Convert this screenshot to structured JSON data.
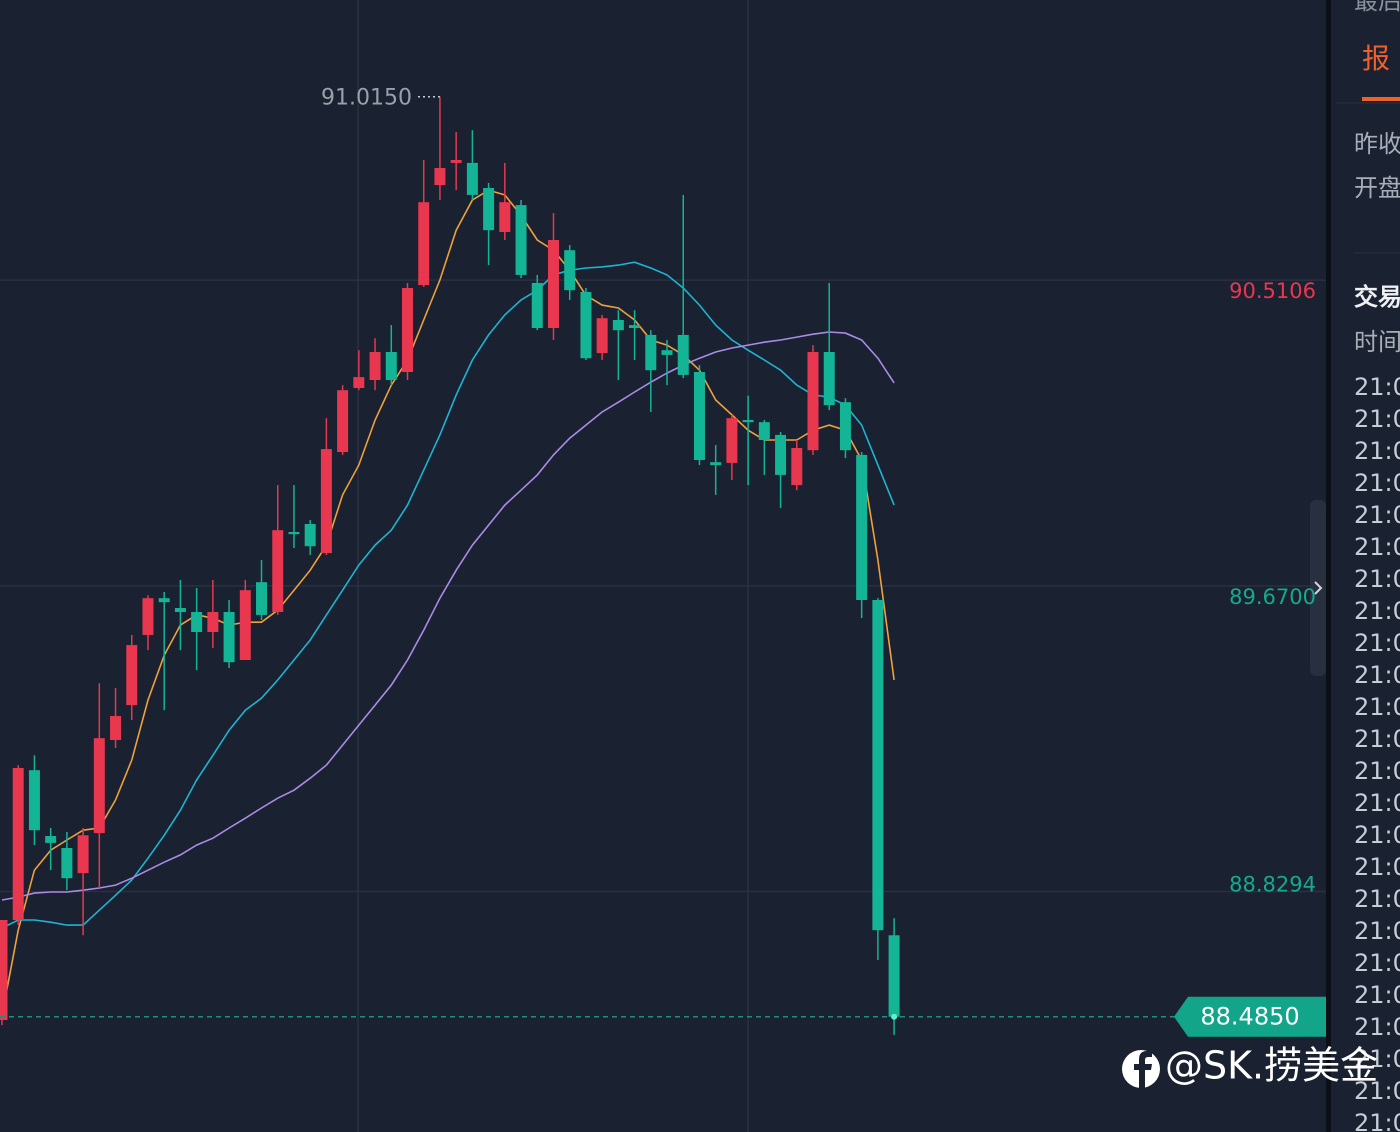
{
  "chart_data": {
    "type": "candlestick",
    "ylim": [
      88.168,
      91.281
    ],
    "yticks": [
      90.5106,
      {
        "value": 89.67,
        "label": "89.6700"
      },
      88.8294
    ],
    "ytick_colors": [
      "#e8374f",
      "#17a88e",
      "#17a88e"
    ],
    "grid": true,
    "up_color": "#e8374f",
    "down_color": "#14b496",
    "open": [
      88.476,
      88.751,
      89.163,
      88.982,
      88.949,
      88.88,
      88.99,
      89.246,
      89.342,
      89.535,
      89.636,
      89.609,
      89.598,
      89.543,
      89.598,
      89.466,
      89.68,
      89.598,
      89.818,
      89.84,
      89.76,
      90.038,
      90.214,
      90.236,
      90.313,
      90.258,
      90.497,
      90.772,
      90.833,
      90.833,
      90.764,
      90.643,
      90.717,
      90.503,
      90.379,
      90.593,
      90.478,
      90.31,
      90.401,
      90.387,
      90.36,
      90.318,
      90.36,
      90.258,
      90.01,
      90.008,
      90.126,
      90.12,
      90.085,
      89.947,
      90.043,
      90.313,
      90.175,
      90.03,
      89.631,
      88.709
    ],
    "high": [
      88.751,
      89.177,
      89.204,
      89.004,
      88.993,
      89.004,
      89.402,
      89.389,
      89.535,
      89.644,
      89.653,
      89.686,
      89.664,
      89.686,
      89.631,
      89.686,
      89.741,
      89.947,
      89.947,
      89.851,
      90.131,
      90.222,
      90.318,
      90.351,
      90.387,
      90.503,
      90.841,
      91.015,
      90.918,
      90.923,
      90.778,
      90.833,
      90.731,
      90.525,
      90.695,
      90.607,
      90.489,
      90.415,
      90.428,
      90.428,
      90.373,
      90.346,
      90.745,
      90.277,
      90.057,
      90.14,
      90.193,
      90.126,
      90.093,
      90.071,
      90.332,
      90.503,
      90.186,
      90.038,
      89.636,
      88.756
    ],
    "low": [
      88.462,
      88.737,
      88.957,
      88.888,
      88.833,
      88.709,
      88.839,
      89.224,
      89.301,
      89.493,
      89.328,
      89.493,
      89.438,
      89.499,
      89.444,
      89.466,
      89.576,
      89.59,
      89.774,
      89.755,
      89.755,
      90.03,
      90.208,
      90.208,
      90.222,
      90.236,
      90.492,
      90.731,
      90.758,
      90.731,
      90.552,
      90.621,
      90.516,
      90.373,
      90.346,
      90.456,
      90.291,
      90.291,
      90.236,
      90.291,
      90.148,
      90.222,
      90.241,
      90.002,
      89.92,
      89.961,
      89.947,
      89.975,
      89.884,
      89.933,
      90.03,
      90.153,
      90.021,
      89.581,
      88.641,
      88.435
    ],
    "close": [
      88.751,
      89.169,
      88.998,
      88.963,
      88.866,
      88.984,
      89.251,
      89.312,
      89.507,
      89.636,
      89.625,
      89.598,
      89.543,
      89.598,
      89.46,
      89.658,
      89.59,
      89.823,
      89.812,
      89.779,
      90.046,
      90.208,
      90.244,
      90.313,
      90.236,
      90.489,
      90.725,
      90.819,
      90.841,
      90.745,
      90.648,
      90.725,
      90.525,
      90.379,
      90.621,
      90.483,
      90.296,
      90.406,
      90.373,
      90.379,
      90.263,
      90.305,
      90.25,
      90.016,
      90.002,
      90.131,
      90.12,
      90.071,
      89.975,
      90.049,
      90.313,
      90.167,
      90.043,
      89.631,
      88.723,
      88.485
    ],
    "series": [
      {
        "color": "#f0a03c",
        "values": [
          88.489,
          88.723,
          88.888,
          88.943,
          88.971,
          88.998,
          89.004,
          89.081,
          89.191,
          89.356,
          89.479,
          89.562,
          89.59,
          89.581,
          89.562,
          89.57,
          89.57,
          89.603,
          89.658,
          89.713,
          89.782,
          89.92,
          90.002,
          90.126,
          90.222,
          90.291,
          90.401,
          90.511,
          90.648,
          90.731,
          90.758,
          90.745,
          90.689,
          90.621,
          90.593,
          90.538,
          90.469,
          90.442,
          90.434,
          90.401,
          90.346,
          90.332,
          90.305,
          90.263,
          90.181,
          90.14,
          90.098,
          90.071,
          90.071,
          90.071,
          90.098,
          90.112,
          90.098,
          90.016,
          89.741,
          89.411
        ]
      },
      {
        "color": "#1eb4d2",
        "values": [
          88.729,
          88.751,
          88.751,
          88.745,
          88.737,
          88.737,
          88.778,
          88.819,
          88.861,
          88.921,
          88.984,
          89.053,
          89.136,
          89.204,
          89.273,
          89.328,
          89.361,
          89.411,
          89.466,
          89.521,
          89.59,
          89.658,
          89.727,
          89.782,
          89.823,
          89.892,
          89.988,
          90.085,
          90.195,
          90.291,
          90.36,
          90.415,
          90.456,
          90.483,
          90.525,
          90.538,
          90.544,
          90.547,
          90.552,
          90.56,
          90.544,
          90.525,
          90.489,
          90.442,
          90.387,
          90.346,
          90.318,
          90.291,
          90.263,
          90.222,
          90.195,
          90.189,
          90.167,
          90.112,
          90.002,
          89.892
        ]
      },
      {
        "color": "#a98be8",
        "values": [
          88.806,
          88.814,
          88.825,
          88.828,
          88.828,
          88.833,
          88.839,
          88.847,
          88.866,
          88.888,
          88.91,
          88.93,
          88.957,
          88.976,
          89.004,
          89.031,
          89.059,
          89.086,
          89.108,
          89.141,
          89.177,
          89.232,
          89.287,
          89.342,
          89.397,
          89.466,
          89.548,
          89.636,
          89.713,
          89.782,
          89.837,
          89.892,
          89.933,
          89.975,
          90.03,
          90.076,
          90.112,
          90.148,
          90.175,
          90.203,
          90.23,
          90.255,
          90.277,
          90.296,
          90.313,
          90.324,
          90.332,
          90.34,
          90.346,
          90.354,
          90.362,
          90.368,
          90.365,
          90.346,
          90.296,
          90.228
        ]
      }
    ],
    "high_label": {
      "value": 91.015,
      "label": "91.0150"
    },
    "last_price": {
      "value": 88.485,
      "label": "88.4850"
    }
  },
  "panel": {
    "header": "最后",
    "tab": "报",
    "fields": [
      "昨收",
      "开盘"
    ],
    "section": "交易",
    "column": "时间",
    "time_rows": [
      "21:0",
      "21:0",
      "21:0",
      "21:0",
      "21:0",
      "21:0",
      "21:0",
      "21:0",
      "21:0",
      "21:0",
      "21:0",
      "21:0",
      "21:0",
      "21:0",
      "21:0",
      "21:0",
      "21:0",
      "21:0",
      "21:0",
      "21:0",
      "21:0",
      "21:0",
      "21:0",
      "21:0"
    ]
  },
  "watermark": "@SK.捞美金"
}
